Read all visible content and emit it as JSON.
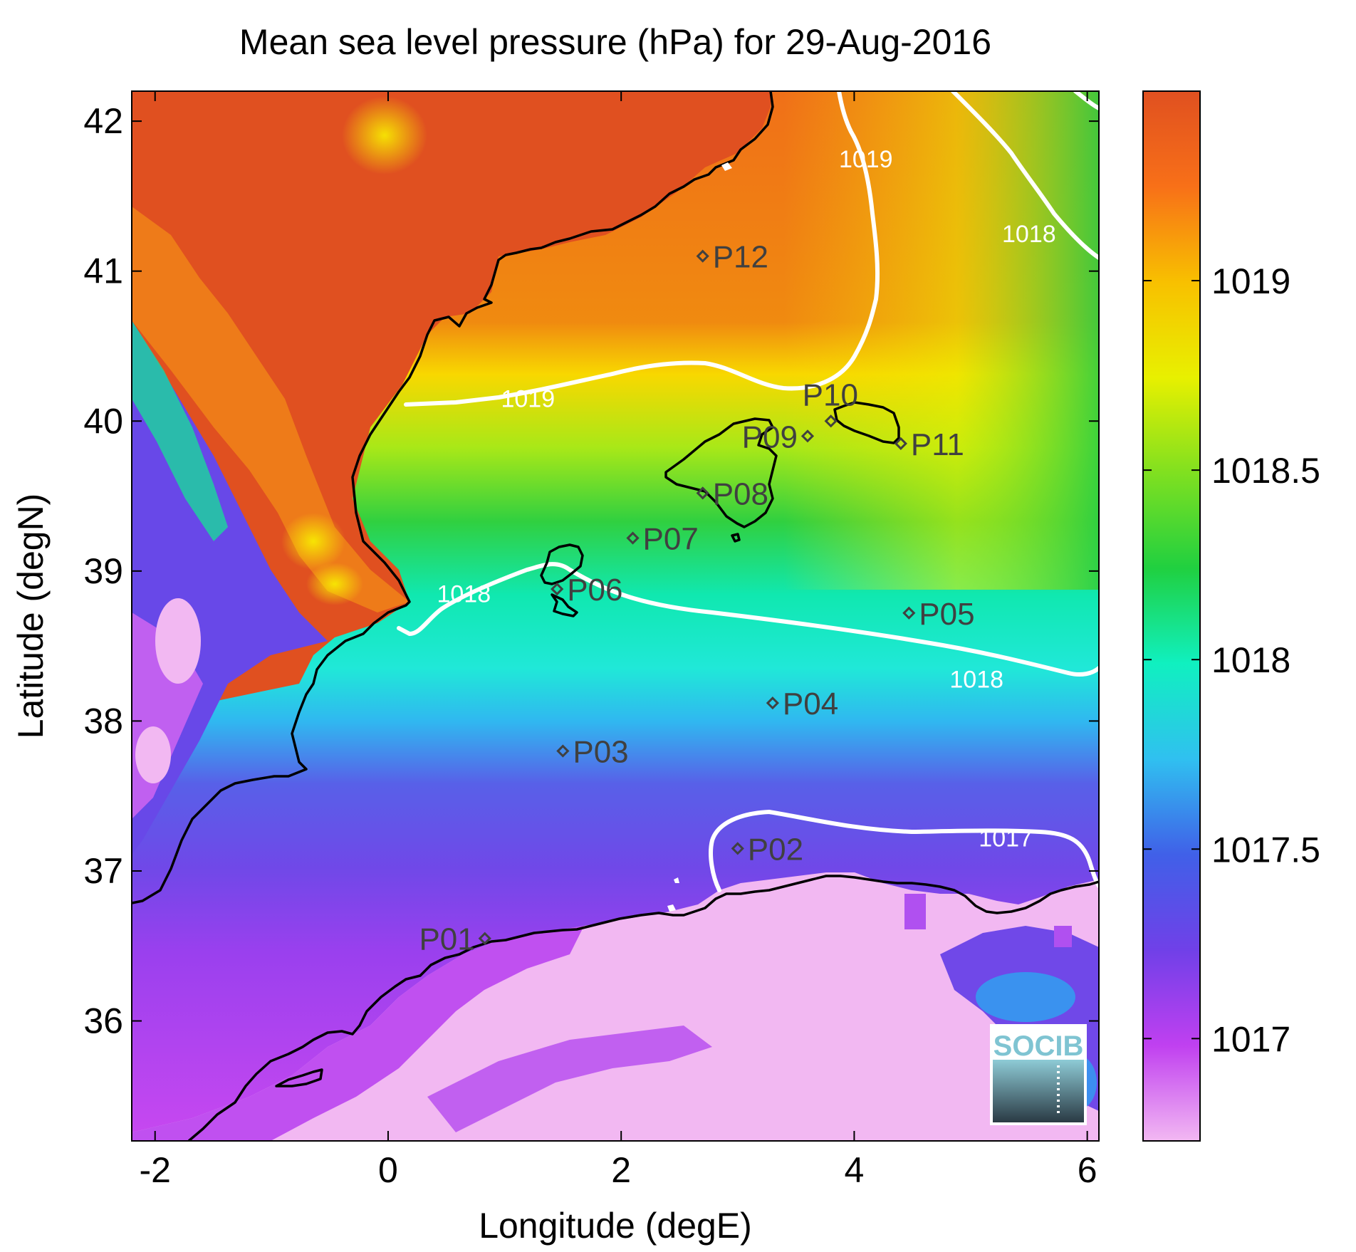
{
  "map": {
    "title": "Mean sea level pressure (hPa) for 29-Aug-2016",
    "xlabel": "Longitude (degE)",
    "ylabel": "Latitude (degN)",
    "xlim": [
      -2.2,
      6.1
    ],
    "ylim": [
      35.2,
      42.2
    ],
    "xticks": [
      -2,
      0,
      2,
      4,
      6
    ],
    "yticks": [
      36,
      37,
      38,
      39,
      40,
      41,
      42
    ],
    "colorbar": {
      "range": [
        1016.73,
        1019.5
      ],
      "ticks": [
        1017,
        1017.5,
        1018,
        1018.5,
        1019
      ],
      "colormap": [
        "#f2b8f2",
        "#c040f0",
        "#7040e8",
        "#4060e8",
        "#30c0f0",
        "#10f0c0",
        "#20d040",
        "#80e020",
        "#e8f000",
        "#f8c000",
        "#f87018",
        "#e05020"
      ]
    },
    "contours": [
      {
        "label": "1019",
        "label_lon": 1.2,
        "label_lat": 40.15
      },
      {
        "label": "1019",
        "label_lon": 4.1,
        "label_lat": 41.75
      },
      {
        "label": "1018",
        "label_lon": 5.5,
        "label_lat": 41.25
      },
      {
        "label": "1018",
        "label_lon": 0.65,
        "label_lat": 38.85
      },
      {
        "label": "1018",
        "label_lon": 5.05,
        "label_lat": 38.28
      },
      {
        "label": "1017",
        "label_lon": 5.3,
        "label_lat": 37.22
      }
    ],
    "stations": [
      {
        "name": "P01",
        "lon": 0.83,
        "lat": 36.55,
        "label_side": "left"
      },
      {
        "name": "P02",
        "lon": 3.0,
        "lat": 37.15,
        "label_side": "right"
      },
      {
        "name": "P03",
        "lon": 1.5,
        "lat": 37.8,
        "label_side": "right"
      },
      {
        "name": "P04",
        "lon": 3.3,
        "lat": 38.12,
        "label_side": "right"
      },
      {
        "name": "P05",
        "lon": 4.47,
        "lat": 38.72,
        "label_side": "right"
      },
      {
        "name": "P06",
        "lon": 1.45,
        "lat": 38.88,
        "label_side": "right"
      },
      {
        "name": "P07",
        "lon": 2.1,
        "lat": 39.22,
        "label_side": "right"
      },
      {
        "name": "P08",
        "lon": 2.7,
        "lat": 39.52,
        "label_side": "right"
      },
      {
        "name": "P09",
        "lon": 3.6,
        "lat": 39.9,
        "label_side": "left"
      },
      {
        "name": "P10",
        "lon": 3.8,
        "lat": 40.0,
        "label_side": "above"
      },
      {
        "name": "P11",
        "lon": 4.4,
        "lat": 39.85,
        "label_side": "right"
      },
      {
        "name": "P12",
        "lon": 2.7,
        "lat": 41.1,
        "label_side": "right"
      }
    ],
    "logo_text": "SOCIB"
  }
}
